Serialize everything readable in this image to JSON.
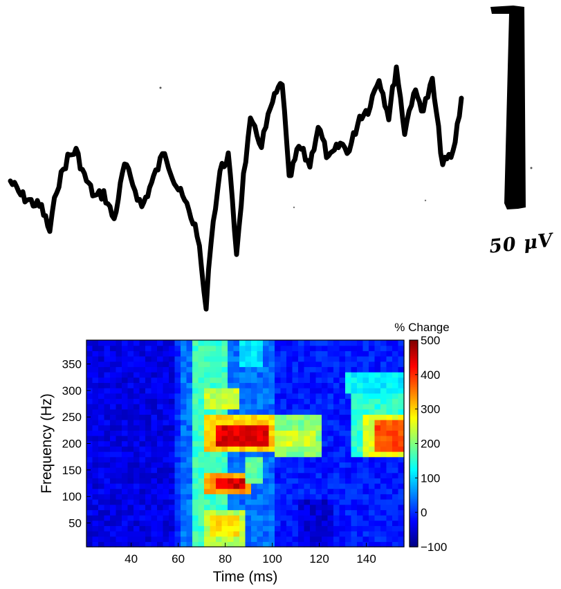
{
  "trace": {
    "scale_bar_label": "50 μV"
  },
  "chart_data": {
    "type": "heatmap",
    "title": "",
    "xlabel": "Time (ms)",
    "ylabel": "Frequency (Hz)",
    "xlim": [
      21,
      156
    ],
    "ylim": [
      5,
      395
    ],
    "xticks": [
      40,
      60,
      80,
      100,
      120,
      140
    ],
    "yticks": [
      50,
      100,
      150,
      200,
      250,
      300,
      350
    ],
    "colorbar": {
      "label": "% Change",
      "range": [
        -100,
        500
      ],
      "ticks": [
        -100,
        0,
        100,
        200,
        300,
        400,
        500
      ],
      "tick_labels": [
        "−100",
        "0",
        "100",
        "200",
        "300",
        "400",
        "500"
      ],
      "colormap": "jet"
    },
    "baseline_value": 0,
    "regions": [
      {
        "t": [
          21,
          58
        ],
        "f": [
          5,
          395
        ],
        "value": -40
      },
      {
        "t": [
          60,
          100
        ],
        "f": [
          5,
          395
        ],
        "value": 40
      },
      {
        "t": [
          100,
          156
        ],
        "f": [
          5,
          395
        ],
        "value": -10
      },
      {
        "t": [
          66,
          82
        ],
        "f": [
          5,
          395
        ],
        "value": 160
      },
      {
        "t": [
          70,
          87
        ],
        "f": [
          270,
          305
        ],
        "value": 240
      },
      {
        "t": [
          70,
          100
        ],
        "f": [
          190,
          250
        ],
        "value": 300
      },
      {
        "t": [
          76,
          98
        ],
        "f": [
          200,
          235
        ],
        "value": 440
      },
      {
        "t": [
          100,
          122
        ],
        "f": [
          180,
          250
        ],
        "value": 200
      },
      {
        "t": [
          102,
          118
        ],
        "f": [
          195,
          225
        ],
        "value": 250
      },
      {
        "t": [
          70,
          92
        ],
        "f": [
          105,
          145
        ],
        "value": 330
      },
      {
        "t": [
          75,
          88
        ],
        "f": [
          112,
          132
        ],
        "value": 450
      },
      {
        "t": [
          88,
          96
        ],
        "f": [
          130,
          170
        ],
        "value": 180
      },
      {
        "t": [
          70,
          89
        ],
        "f": [
          5,
          72
        ],
        "value": 230
      },
      {
        "t": [
          74,
          86
        ],
        "f": [
          28,
          60
        ],
        "value": 290
      },
      {
        "t": [
          134,
          156
        ],
        "f": [
          175,
          300
        ],
        "value": 150
      },
      {
        "t": [
          138,
          156
        ],
        "f": [
          180,
          250
        ],
        "value": 260
      },
      {
        "t": [
          144,
          156
        ],
        "f": [
          190,
          240
        ],
        "value": 380
      },
      {
        "t": [
          132,
          156
        ],
        "f": [
          300,
          330
        ],
        "value": 120
      },
      {
        "t": [
          85,
          97
        ],
        "f": [
          350,
          395
        ],
        "value": 110
      },
      {
        "t": [
          110,
          125
        ],
        "f": [
          5,
          90
        ],
        "value": -50
      }
    ]
  }
}
